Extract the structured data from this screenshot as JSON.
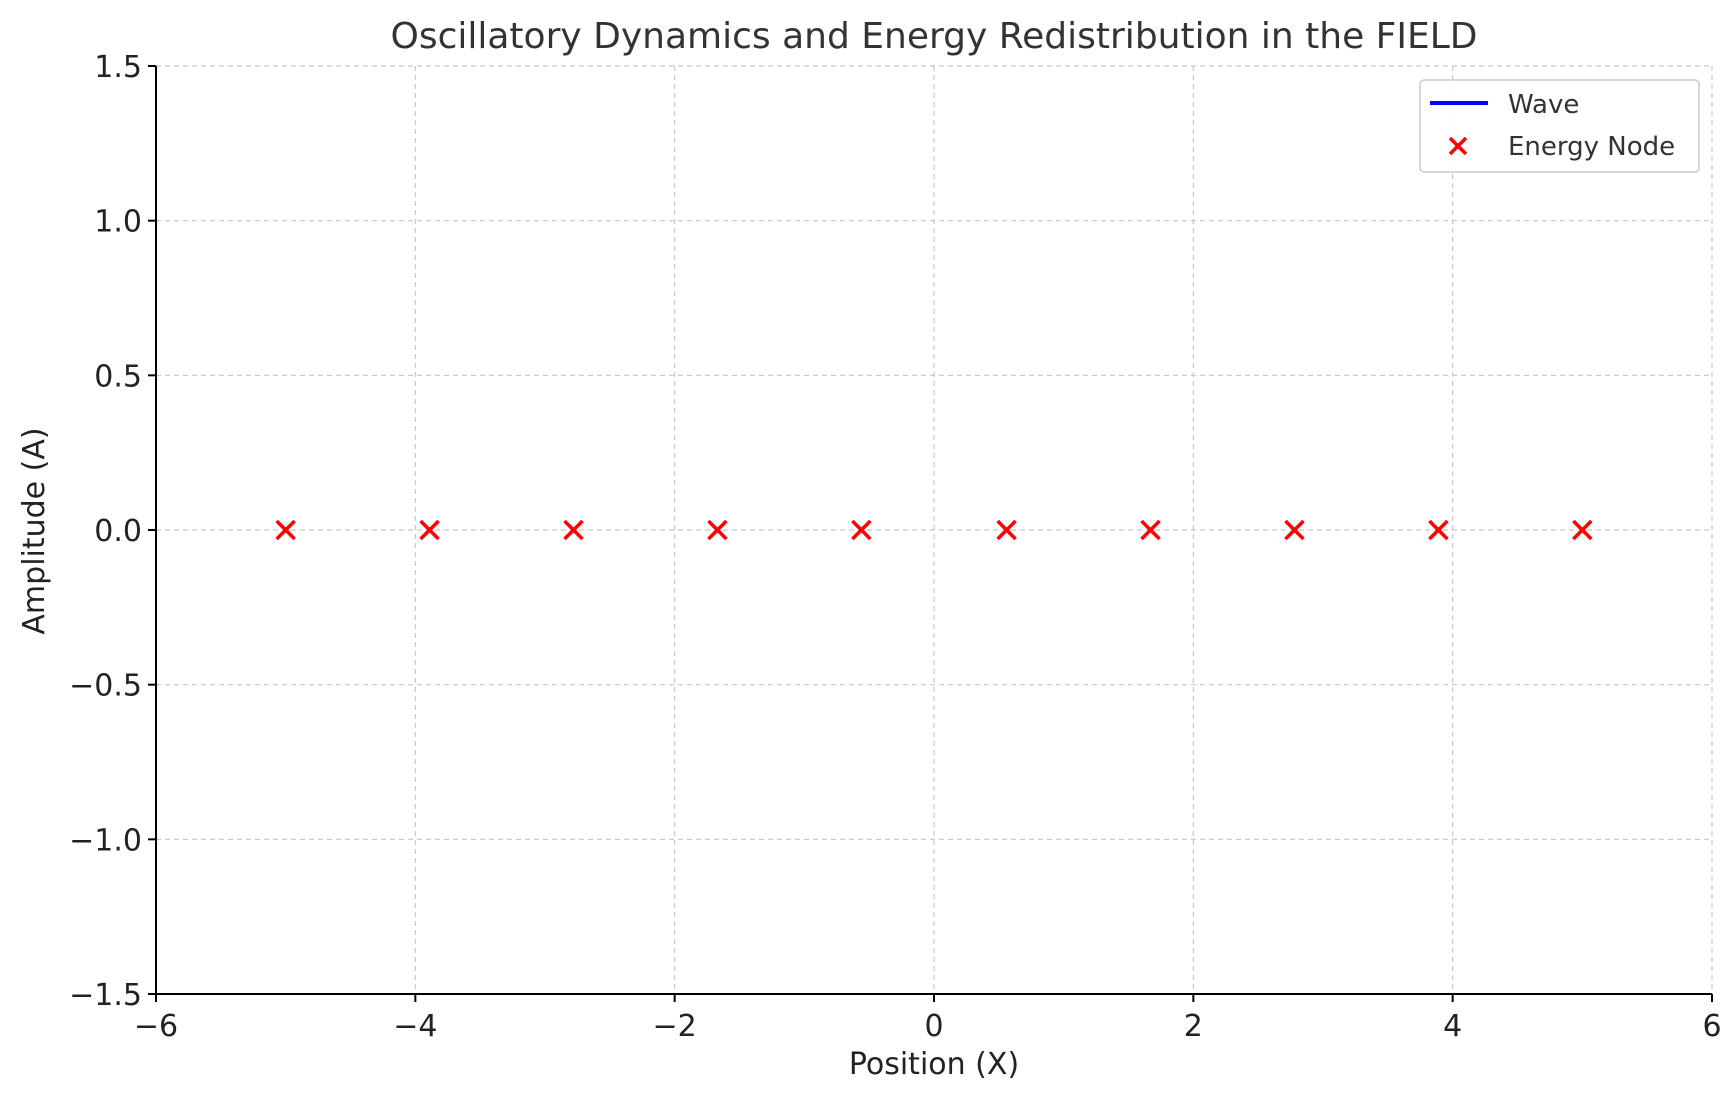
{
  "chart_data": {
    "type": "scatter",
    "title": "Oscillatory Dynamics and Energy Redistribution in the FIELD",
    "xlabel": "Position (X)",
    "ylabel": "Amplitude (A)",
    "xlim": [
      -6,
      6
    ],
    "ylim": [
      -1.5,
      1.5
    ],
    "xticks": [
      -6,
      -4,
      -2,
      0,
      2,
      4,
      6
    ],
    "xtick_labels": [
      "−6",
      "−4",
      "−2",
      "0",
      "2",
      "4",
      "6"
    ],
    "yticks": [
      -1.5,
      -1.0,
      -0.5,
      0.0,
      0.5,
      1.0,
      1.5
    ],
    "ytick_labels": [
      "−1.5",
      "−1.0",
      "−0.5",
      "0.0",
      "0.5",
      "1.0",
      "1.5"
    ],
    "grid": true,
    "legend_position": "top-right",
    "series": [
      {
        "name": "Wave",
        "kind": "line",
        "color": "#0000ff",
        "x": [],
        "y": []
      },
      {
        "name": "Energy Node",
        "kind": "scatter",
        "marker": "x",
        "color": "#ff0000",
        "x": [
          -5.0,
          -3.89,
          -2.78,
          -1.67,
          -0.56,
          0.56,
          1.67,
          2.78,
          3.89,
          5.0
        ],
        "y": [
          0,
          0,
          0,
          0,
          0,
          0,
          0,
          0,
          0,
          0
        ]
      }
    ]
  }
}
